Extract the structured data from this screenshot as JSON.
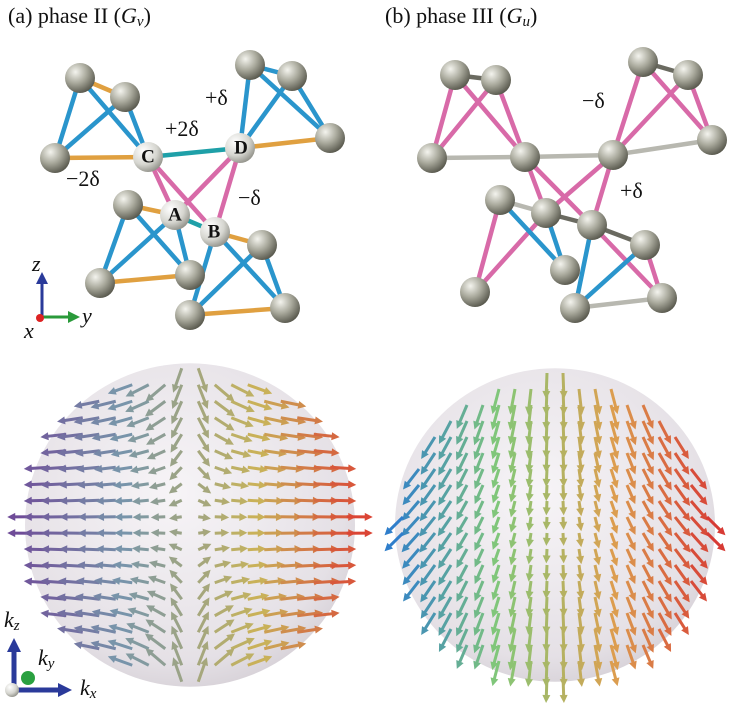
{
  "panels": [
    {
      "label": "(a) phase II (",
      "symbol": "G",
      "subscript": "v",
      "close": ")",
      "sites": [
        "A",
        "B",
        "C",
        "D"
      ],
      "bond_labels": [
        "+δ",
        "+2δ",
        "−2δ",
        "−δ"
      ],
      "axes": [
        "z",
        "x",
        "y"
      ],
      "k_axes": [
        {
          "base": "k",
          "sub": "z"
        },
        {
          "base": "k",
          "sub": "y"
        },
        {
          "base": "k",
          "sub": "x"
        }
      ]
    },
    {
      "label": "(b) phase III (",
      "symbol": "G",
      "subscript": "u",
      "close": ")",
      "bond_labels": [
        "−δ",
        "+δ"
      ]
    }
  ]
}
